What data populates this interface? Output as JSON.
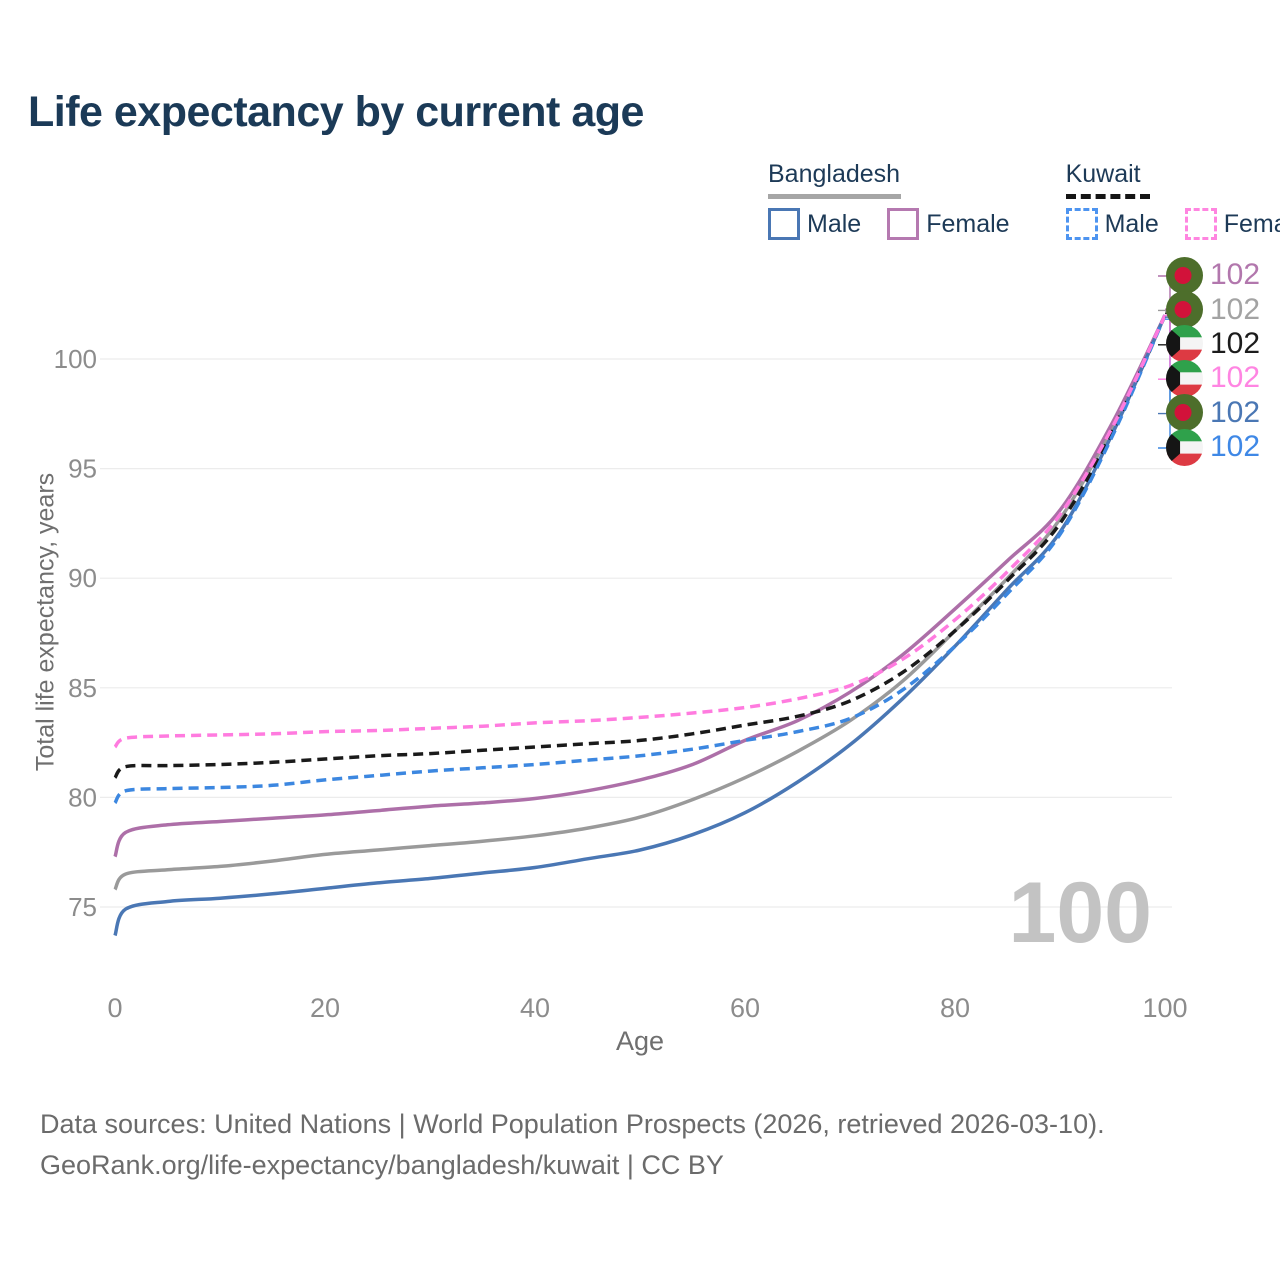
{
  "header": {
    "title": "Life expectancy by current age"
  },
  "legend": {
    "groups": [
      {
        "label": "Bangladesh",
        "line_style": "solid",
        "line_color": "#a6a6a6",
        "items": [
          {
            "label": "Male",
            "color": "#4a77b4",
            "style": "solid"
          },
          {
            "label": "Female",
            "color": "#b579b0",
            "style": "solid"
          }
        ]
      },
      {
        "label": "Kuwait",
        "line_style": "dashed",
        "line_color": "#151515",
        "items": [
          {
            "label": "Male",
            "color": "#4d94f0",
            "style": "dashed"
          },
          {
            "label": "Female",
            "color": "#ff85e0",
            "style": "dashed"
          }
        ]
      }
    ]
  },
  "chart_data": {
    "type": "line",
    "title": "Life expectancy by current age",
    "xlabel": "Age",
    "ylabel": "Total life expectancy, years",
    "xlim": [
      0,
      100
    ],
    "ylim": [
      73.5,
      103
    ],
    "x_ticks": [
      0,
      20,
      40,
      60,
      80,
      100
    ],
    "y_ticks": [
      75,
      80,
      85,
      90,
      95,
      100
    ],
    "grid": "horizontal-only",
    "legend_position": "top-right",
    "x": [
      0,
      1,
      5,
      10,
      15,
      20,
      25,
      30,
      35,
      40,
      45,
      50,
      55,
      60,
      65,
      70,
      75,
      80,
      85,
      90,
      95,
      100
    ],
    "series": [
      {
        "name": "Bangladesh Both sexes",
        "country": "Bangladesh",
        "sex": "Both sexes",
        "color": "#9a9a9a",
        "dash": false,
        "end_label": "102",
        "end_row": 1,
        "values": [
          75.8,
          76.5,
          76.7,
          76.85,
          77.1,
          77.4,
          77.6,
          77.8,
          78.0,
          78.25,
          78.6,
          79.1,
          79.9,
          80.9,
          82.1,
          83.5,
          85.3,
          87.6,
          90.0,
          92.7,
          96.9,
          102
        ]
      },
      {
        "name": "Bangladesh Female",
        "country": "Bangladesh",
        "sex": "Female",
        "color": "#ad6fa8",
        "dash": false,
        "end_label": "102",
        "end_row": 0,
        "values": [
          77.3,
          78.4,
          78.75,
          78.9,
          79.05,
          79.2,
          79.4,
          79.6,
          79.75,
          79.95,
          80.3,
          80.8,
          81.5,
          82.6,
          83.5,
          84.8,
          86.5,
          88.6,
          90.8,
          93.1,
          97.1,
          102
        ]
      },
      {
        "name": "Bangladesh Male",
        "country": "Bangladesh",
        "sex": "Male",
        "color": "#4a77b4",
        "dash": false,
        "end_label": "102",
        "end_row": 4,
        "values": [
          73.7,
          74.9,
          75.25,
          75.4,
          75.6,
          75.85,
          76.1,
          76.3,
          76.55,
          76.8,
          77.2,
          77.6,
          78.3,
          79.3,
          80.7,
          82.4,
          84.5,
          86.9,
          89.5,
          92.1,
          96.6,
          102
        ]
      },
      {
        "name": "Kuwait Both sexes",
        "country": "Kuwait",
        "sex": "Both sexes",
        "color": "#1a1a1a",
        "dash": true,
        "end_label": "102",
        "end_row": 2,
        "values": [
          80.9,
          81.4,
          81.45,
          81.5,
          81.6,
          81.75,
          81.9,
          82.0,
          82.15,
          82.3,
          82.45,
          82.6,
          82.9,
          83.3,
          83.7,
          84.4,
          85.7,
          87.6,
          89.9,
          92.5,
          96.7,
          102
        ]
      },
      {
        "name": "Kuwait Male",
        "country": "Kuwait",
        "sex": "Male",
        "color": "#3c87e0",
        "dash": true,
        "end_label": "102",
        "end_row": 5,
        "values": [
          79.75,
          80.3,
          80.4,
          80.45,
          80.55,
          80.8,
          81.0,
          81.2,
          81.35,
          81.5,
          81.7,
          81.9,
          82.2,
          82.6,
          83.0,
          83.6,
          84.9,
          86.9,
          89.3,
          92.0,
          96.5,
          102
        ]
      },
      {
        "name": "Kuwait Female",
        "country": "Kuwait",
        "sex": "Female",
        "color": "#ff7bdf",
        "dash": true,
        "end_label": "102",
        "end_row": 3,
        "values": [
          82.3,
          82.7,
          82.8,
          82.85,
          82.9,
          83.0,
          83.05,
          83.15,
          83.25,
          83.4,
          83.5,
          83.65,
          83.85,
          84.1,
          84.5,
          85.1,
          86.3,
          88.1,
          90.3,
          92.9,
          96.9,
          102
        ]
      }
    ]
  },
  "end_labels": {
    "rows": [
      {
        "flag": "bangladesh",
        "value": "102",
        "color": "#b277ad",
        "series": "Bangladesh Female"
      },
      {
        "flag": "bangladesh",
        "value": "102",
        "color": "#a3a3a3",
        "series": "Bangladesh Both sexes"
      },
      {
        "flag": "kuwait",
        "value": "102",
        "color": "#1c1c1c",
        "series": "Kuwait Both sexes"
      },
      {
        "flag": "kuwait",
        "value": "102",
        "color": "#ff85e2",
        "series": "Kuwait Female"
      },
      {
        "flag": "bangladesh",
        "value": "102",
        "color": "#4a77b4",
        "series": "Bangladesh Male"
      },
      {
        "flag": "kuwait",
        "value": "102",
        "color": "#3f88e6",
        "series": "Kuwait Male"
      }
    ]
  },
  "watermark": "100",
  "footer": {
    "line1": "Data sources: United Nations | World Population Prospects (2026, retrieved 2026-03-10).",
    "line2": "GeoRank.org/life-expectancy/bangladesh/kuwait | CC BY"
  },
  "colors": {
    "title_text": "#1b3a57",
    "axis_text": "#8c8c8c",
    "gridline": "#ececec",
    "watermark": "#c3c3c3",
    "footer_text": "#6b6b6b"
  }
}
